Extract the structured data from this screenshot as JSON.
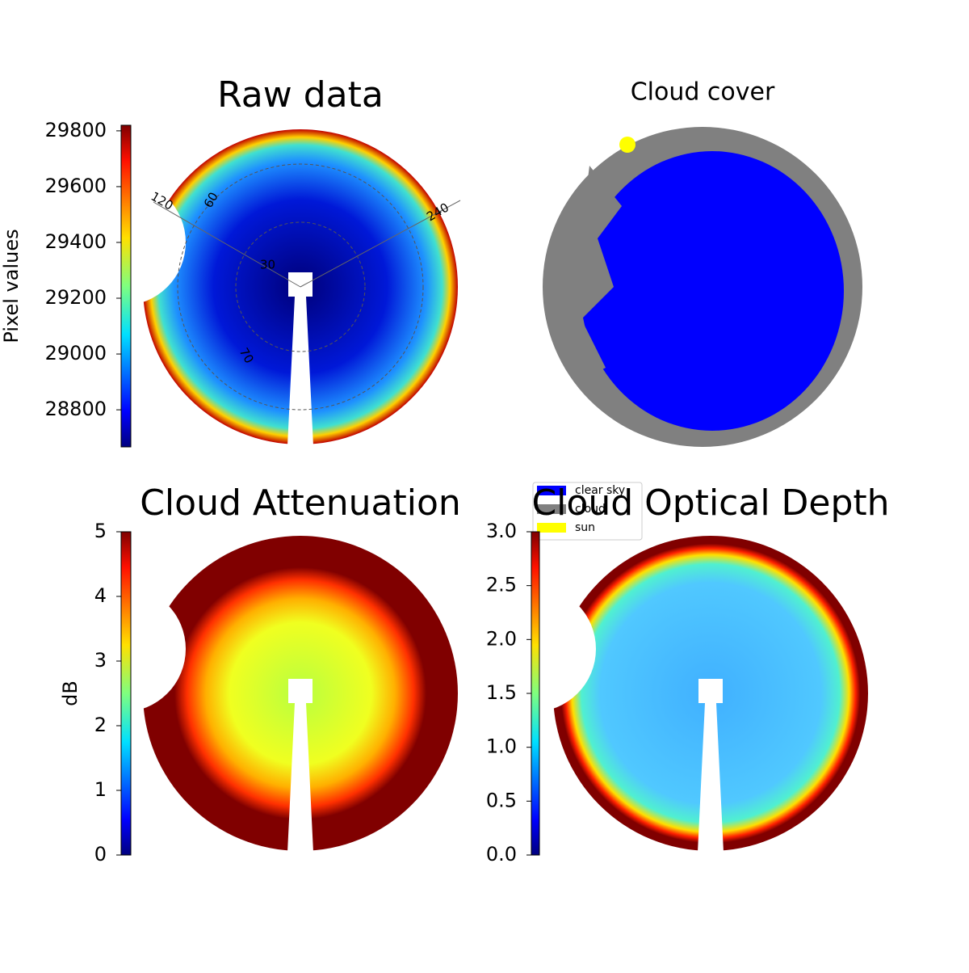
{
  "chart_data": [
    {
      "type": "heatmap",
      "title": "Raw data",
      "colorbar": {
        "label": "Pixel values",
        "lim": [
          28667,
          29820
        ],
        "ticks": [
          28800,
          29000,
          29200,
          29400,
          29600,
          29800
        ]
      },
      "annotations": [
        "120",
        "60",
        "240",
        "30",
        "70"
      ]
    },
    {
      "type": "classification",
      "title": "Cloud cover",
      "legend": [
        {
          "name": "clear sky",
          "color": "#0000ff"
        },
        {
          "name": "cloud",
          "color": "#808080"
        },
        {
          "name": "sun",
          "color": "#ffff00"
        }
      ]
    },
    {
      "type": "heatmap",
      "title": "Cloud Attenuation",
      "colorbar": {
        "label": "dB",
        "lim": [
          0,
          5
        ],
        "ticks": [
          0,
          1,
          2,
          3,
          4,
          5
        ]
      }
    },
    {
      "type": "heatmap",
      "title": "Cloud Optical Depth",
      "colorbar": {
        "lim": [
          0,
          3
        ],
        "ticks": [
          {
            "value": 0,
            "label": "0.0"
          },
          0.5,
          {
            "value": 1,
            "label": "1.0"
          },
          1.5,
          {
            "value": 2,
            "label": "2.0"
          },
          2.5,
          {
            "value": 3,
            "label": "3.0"
          }
        ]
      }
    }
  ]
}
